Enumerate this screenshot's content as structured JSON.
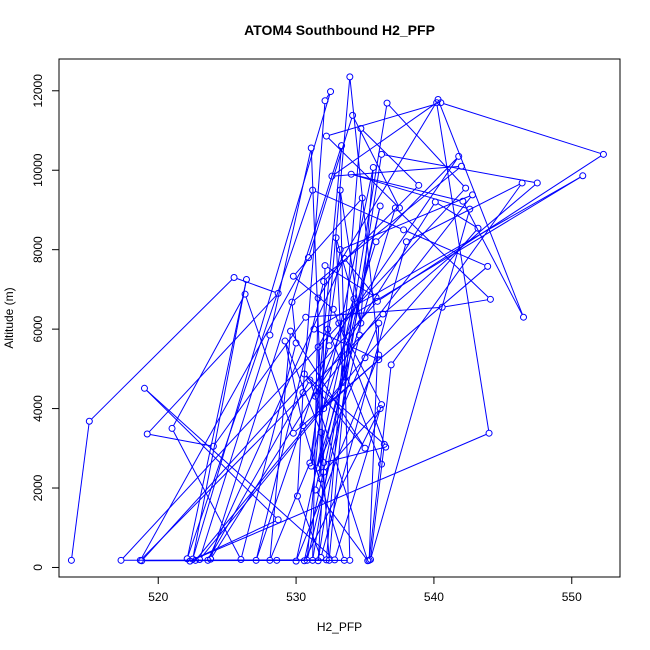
{
  "chart_data": {
    "type": "line",
    "title": "ATOM4 Southbound H2_PFP",
    "xlabel": "H2_PFP",
    "ylabel": "Altitude (m)",
    "xlim": [
      512.8,
      553.5
    ],
    "ylim": [
      -240,
      12800
    ],
    "xticks": [
      520,
      530,
      540,
      550
    ],
    "yticks": [
      0,
      2000,
      4000,
      6000,
      8000,
      10000,
      12000
    ],
    "grid": false,
    "color": "#0000ff",
    "points": [
      [
        513.7,
        180
      ],
      [
        515.0,
        3680
      ],
      [
        525.5,
        7300
      ],
      [
        528.7,
        6900
      ],
      [
        519.2,
        3360
      ],
      [
        524.0,
        3050
      ],
      [
        530.7,
        6300
      ],
      [
        540.6,
        6550
      ],
      [
        544.1,
        6750
      ],
      [
        537.2,
        9050
      ],
      [
        531.5,
        2500
      ],
      [
        536.0,
        6150
      ],
      [
        535.3,
        180
      ],
      [
        536.9,
        5100
      ],
      [
        546.4,
        9680
      ],
      [
        538.0,
        8200
      ],
      [
        531.8,
        250
      ],
      [
        530.1,
        1800
      ],
      [
        530.5,
        4400
      ],
      [
        532.1,
        11750
      ],
      [
        532.5,
        11980
      ],
      [
        522.5,
        210
      ],
      [
        526.4,
        7250
      ],
      [
        522.1,
        220
      ],
      [
        531.2,
        9500
      ],
      [
        537.8,
        8500
      ],
      [
        543.9,
        7580
      ],
      [
        529.8,
        3380
      ],
      [
        526.3,
        6880
      ],
      [
        521.0,
        3500
      ],
      [
        526.0,
        200
      ],
      [
        530.0,
        5650
      ],
      [
        529.7,
        6680
      ],
      [
        542.0,
        10100
      ],
      [
        532.6,
        9850
      ],
      [
        540.2,
        11700
      ],
      [
        544.0,
        3380
      ],
      [
        522.3,
        160
      ],
      [
        528.7,
        1200
      ],
      [
        519.0,
        4510
      ],
      [
        532.8,
        190
      ],
      [
        536.2,
        4100
      ],
      [
        533.1,
        6150
      ],
      [
        550.8,
        9860
      ],
      [
        531.3,
        6000
      ],
      [
        536.0,
        5230
      ],
      [
        532.0,
        4000
      ],
      [
        535.8,
        8200
      ],
      [
        541.8,
        10350
      ],
      [
        532.4,
        5580
      ],
      [
        527.1,
        180
      ],
      [
        532.0,
        7200
      ],
      [
        538.9,
        9620
      ],
      [
        534.7,
        11050
      ],
      [
        532.2,
        190
      ],
      [
        517.3,
        180
      ],
      [
        542.3,
        9550
      ],
      [
        536.6,
        11690
      ],
      [
        531.2,
        180
      ],
      [
        531.6,
        6780
      ],
      [
        540.3,
        11780
      ],
      [
        546.5,
        6300
      ],
      [
        542.1,
        9220
      ],
      [
        534.0,
        9900
      ],
      [
        542.6,
        9020
      ],
      [
        535.4,
        200
      ],
      [
        536.4,
        3100
      ],
      [
        530.6,
        4870
      ],
      [
        535.0,
        3000
      ],
      [
        529.6,
        5950
      ],
      [
        528.1,
        180
      ],
      [
        531.0,
        2630
      ],
      [
        533.2,
        8000
      ],
      [
        542.8,
        9380
      ],
      [
        531.4,
        4310
      ],
      [
        534.2,
        6760
      ],
      [
        530.0,
        160
      ],
      [
        536.0,
        5350
      ],
      [
        533.9,
        12350
      ],
      [
        530.8,
        180
      ],
      [
        534.6,
        5850
      ],
      [
        535.6,
        10070
      ],
      [
        531.1,
        2550
      ],
      [
        533.3,
        10620
      ],
      [
        523.8,
        210
      ],
      [
        540.1,
        9200
      ],
      [
        543.2,
        8540
      ],
      [
        535.0,
        5280
      ],
      [
        523.0,
        200
      ],
      [
        528.1,
        5850
      ],
      [
        531.1,
        10560
      ],
      [
        532.0,
        2640
      ],
      [
        536.5,
        3030
      ],
      [
        532.7,
        6500
      ],
      [
        529.8,
        7330
      ],
      [
        534.8,
        9300
      ],
      [
        532.4,
        180
      ],
      [
        531.8,
        3400
      ],
      [
        529.2,
        5700
      ],
      [
        530.5,
        3570
      ],
      [
        533.5,
        180
      ],
      [
        528.6,
        180
      ],
      [
        522.7,
        180
      ],
      [
        533.4,
        4660
      ],
      [
        532.9,
        8300
      ],
      [
        534.7,
        6150
      ],
      [
        533.2,
        9500
      ],
      [
        533.9,
        180
      ],
      [
        518.8,
        170
      ],
      [
        535.9,
        6700
      ],
      [
        552.3,
        10400
      ],
      [
        540.5,
        11700
      ],
      [
        532.2,
        10860
      ],
      [
        537.5,
        9050
      ],
      [
        534.1,
        11380
      ],
      [
        530.9,
        7800
      ],
      [
        518.7,
        180
      ],
      [
        536.3,
        6380
      ],
      [
        547.5,
        9680
      ],
      [
        536.2,
        10400
      ],
      [
        531.6,
        170
      ],
      [
        532.0,
        2400
      ],
      [
        536.1,
        4000
      ],
      [
        530.6,
        170
      ],
      [
        536.1,
        9100
      ],
      [
        531.4,
        1950
      ],
      [
        535.2,
        170
      ],
      [
        531.0,
        4720
      ],
      [
        523.6,
        180
      ],
      [
        533.5,
        7780
      ],
      [
        535.8,
        6800
      ],
      [
        532.1,
        7600
      ],
      [
        531.8,
        2230
      ],
      [
        531.6,
        5550
      ],
      [
        532.3,
        6000
      ],
      [
        536.2,
        2600
      ]
    ]
  }
}
